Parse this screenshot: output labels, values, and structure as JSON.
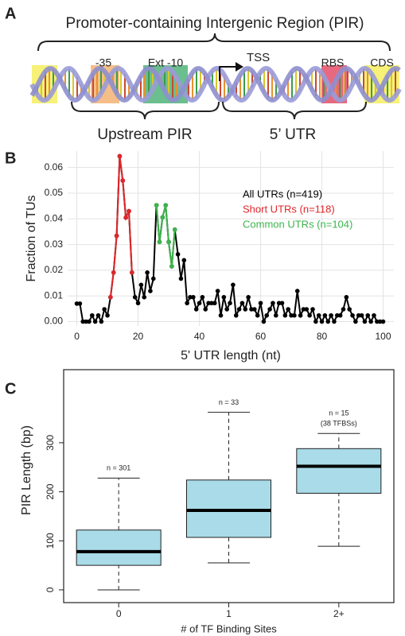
{
  "panels": [
    "A",
    "B",
    "C"
  ],
  "diagram": {
    "title": "Promoter-containing Intergenic Region (PIR)",
    "minus35": "-35",
    "ext10": "Ext -10",
    "tss": "TSS",
    "rbs": "RBS",
    "cds": "CDS",
    "upstream": "Upstream PIR",
    "utr": "5’ UTR"
  },
  "chart_data": [
    {
      "type": "line",
      "xlabel": "5' UTR length (nt)",
      "ylabel": "Fraction of TUs",
      "x": [
        0,
        1,
        2,
        3,
        4,
        5,
        6,
        7,
        8,
        9,
        10,
        11,
        12,
        13,
        14,
        15,
        16,
        17,
        18,
        19,
        20,
        21,
        22,
        23,
        24,
        25,
        26,
        27,
        28,
        29,
        30,
        31,
        32,
        33,
        34,
        35,
        36,
        37,
        38,
        39,
        40,
        41,
        42,
        43,
        44,
        45,
        46,
        47,
        48,
        49,
        50,
        51,
        52,
        53,
        54,
        55,
        56,
        57,
        58,
        59,
        60,
        61,
        62,
        63,
        64,
        65,
        66,
        67,
        68,
        69,
        70,
        71,
        72,
        73,
        74,
        75,
        76,
        77,
        78,
        79,
        80,
        81,
        82,
        83,
        84,
        85,
        86,
        87,
        88,
        89,
        90,
        91,
        92,
        93,
        94,
        95,
        96,
        97,
        98,
        99,
        100
      ],
      "series": [
        {
          "name": "All UTRs (n=419)",
          "color": "#000000",
          "values": [
            0.007,
            0.007,
            0,
            0,
            0,
            0.0024,
            0,
            0.0024,
            0,
            0.0048,
            0.0024,
            0.0095,
            0.0191,
            0.0334,
            0.0644,
            0.0549,
            0.0405,
            0.043,
            0.0191,
            0.0095,
            0.0072,
            0.0143,
            0.0095,
            0.0191,
            0.0119,
            0.0167,
            0.0453,
            0.031,
            0.0406,
            0.0453,
            0.031,
            0.0215,
            0.0358,
            0.0262,
            0.0167,
            0.0239,
            0.0072,
            0.0095,
            0.0095,
            0.0048,
            0.0072,
            0.0095,
            0.0048,
            0.0072,
            0.0072,
            0.0072,
            0.0119,
            0.0024,
            0.0095,
            0.0048,
            0.0072,
            0.0143,
            0.0024,
            0.0048,
            0.0072,
            0.0048,
            0.0095,
            0.0048,
            0.0048,
            0.0024,
            0.0072,
            0,
            0.0024,
            0.0048,
            0.0072,
            0.0024,
            0.0072,
            0.0072,
            0.0024,
            0.0048,
            0.0024,
            0.0024,
            0.0119,
            0.0024,
            0.0048,
            0.0048,
            0.0024,
            0.0048,
            0,
            0.0024,
            0,
            0.0024,
            0,
            0.0024,
            0,
            0.0024,
            0.0024,
            0.0048,
            0.0095,
            0.0048,
            0.0024,
            0,
            0.0024,
            0.0024,
            0,
            0.0024,
            0,
            0.0024,
            0,
            0,
            0
          ]
        },
        {
          "name": "Short UTRs (n=118)",
          "color": "#e0262b",
          "values": [
            null,
            null,
            null,
            null,
            null,
            null,
            null,
            null,
            null,
            null,
            null,
            0.0095,
            0.0191,
            0.0334,
            0.0644,
            0.0549,
            0.0405,
            0.043,
            0.0191,
            null,
            null,
            null,
            null,
            null,
            null,
            null,
            null,
            null,
            null,
            null,
            null,
            null,
            null,
            null,
            null,
            null,
            null,
            null,
            null,
            null,
            null,
            null,
            null,
            null,
            null,
            null,
            null,
            null,
            null,
            null,
            null,
            null,
            null,
            null,
            null,
            null,
            null,
            null,
            null,
            null,
            null,
            null,
            null,
            null,
            null,
            null,
            null,
            null,
            null,
            null,
            null,
            null,
            null,
            null,
            null,
            null,
            null,
            null,
            null,
            null,
            null,
            null,
            null,
            null,
            null,
            null,
            null,
            null,
            null,
            null,
            null,
            null,
            null,
            null,
            null,
            null,
            null,
            null,
            null,
            null,
            null
          ]
        },
        {
          "name": "Common UTRs (n=104)",
          "color": "#3cb44b",
          "values": [
            null,
            null,
            null,
            null,
            null,
            null,
            null,
            null,
            null,
            null,
            null,
            null,
            null,
            null,
            null,
            null,
            null,
            null,
            null,
            null,
            null,
            null,
            null,
            null,
            null,
            null,
            0.0453,
            0.031,
            0.0406,
            0.0453,
            0.031,
            0.0215,
            0.0358,
            null,
            null,
            null,
            null,
            null,
            null,
            null,
            null,
            null,
            null,
            null,
            null,
            null,
            null,
            null,
            null,
            null,
            null,
            null,
            null,
            null,
            null,
            null,
            null,
            null,
            null,
            null,
            null,
            null,
            null,
            null,
            null,
            null,
            null,
            null,
            null,
            null,
            null,
            null,
            null,
            null,
            null,
            null,
            null,
            null,
            null,
            null,
            null,
            null,
            null,
            null,
            null,
            null,
            null,
            null,
            null,
            null,
            null,
            null,
            null,
            null,
            null,
            null,
            null,
            null,
            null,
            null,
            null
          ]
        }
      ],
      "xlim": [
        -3,
        103.5
      ],
      "ylim": [
        -0.0017,
        0.0664
      ],
      "xticks": [
        0,
        20,
        40,
        60,
        80,
        100
      ],
      "yticks": [
        {
          "value": 0,
          "label": "0.00"
        },
        0.01,
        0.02,
        0.03,
        0.04,
        0.05,
        0.06
      ],
      "grid": true,
      "legend": "upper right"
    },
    {
      "type": "box",
      "xlabel": "# of TF Binding Sites",
      "ylabel": "PIR Length (bp)",
      "categories": [
        "0",
        "1",
        "2+"
      ],
      "color": "#a9dbe8",
      "boxes": [
        {
          "low": 0,
          "q1": 50,
          "median": 78,
          "q3": 122,
          "high": 228
        },
        {
          "low": 55,
          "q1": 107,
          "median": 162,
          "q3": 224,
          "high": 362
        },
        {
          "low": 89,
          "q1": 197,
          "median": 252,
          "q3": 288,
          "high": 319
        }
      ],
      "annotations": [
        [
          "n = 301"
        ],
        [
          "n = 33"
        ],
        [
          "n = 15",
          "(38 TFBSs)"
        ]
      ],
      "ylim": [
        -26,
        449
      ],
      "yticks": [
        0,
        100,
        200,
        300
      ]
    }
  ]
}
